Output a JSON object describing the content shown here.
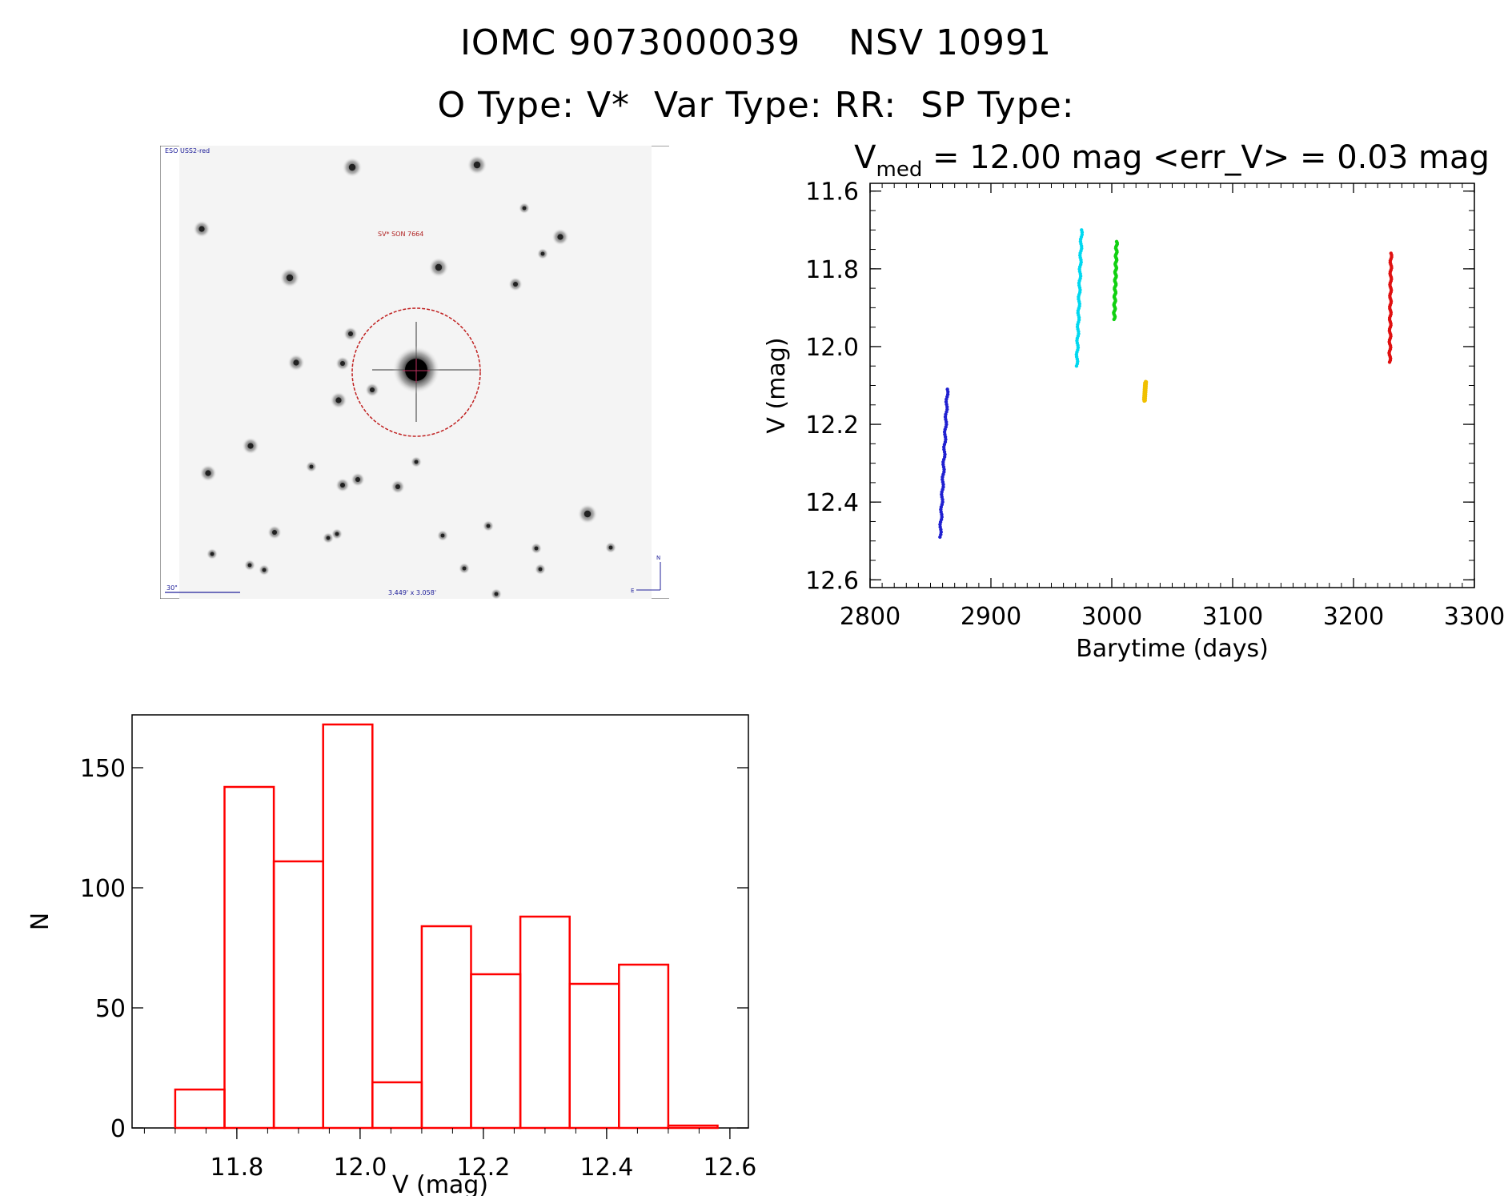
{
  "header": {
    "line1": "IOMC 9073000039    NSV 10991",
    "line2": "O Type: V*  Var Type: RR:  SP Type:"
  },
  "stamp": {
    "survey_label": "ESO USS2-red",
    "object_label": "SV* SON 7664",
    "scale_label": "30\"",
    "size_label": "3.449' x 3.058'",
    "north_label": "N",
    "east_label": "E"
  },
  "chart_data": [
    {
      "type": "scatter",
      "title_main": "V",
      "title_sub": "med",
      "title_rest": " = 12.00 mag <err_V> = 0.03 mag",
      "xlabel": "Barytime (days)",
      "ylabel": "V (mag)",
      "xlim": [
        2800,
        3300
      ],
      "ylim": [
        12.62,
        11.58
      ],
      "y_inverted": true,
      "xticks": [
        2800,
        2900,
        3000,
        3100,
        3200,
        3300
      ],
      "yticks": [
        "11.6",
        "11.8",
        "12.0",
        "12.2",
        "12.4",
        "12.6"
      ],
      "series": [
        {
          "color": "#2020d0",
          "x_range": [
            2858,
            2864
          ],
          "y_range": [
            12.11,
            12.49
          ]
        },
        {
          "color": "#00d8f0",
          "x_range": [
            2971,
            2975
          ],
          "y_range": [
            11.7,
            12.05
          ]
        },
        {
          "color": "#10d010",
          "x_range": [
            3002,
            3004
          ],
          "y_range": [
            11.73,
            11.93
          ]
        },
        {
          "color": "#f0c000",
          "x_range": [
            3027,
            3028
          ],
          "y_range": [
            12.09,
            12.14
          ]
        },
        {
          "color": "#e01010",
          "x_range": [
            3230,
            3231
          ],
          "y_range": [
            11.76,
            12.04
          ]
        }
      ]
    },
    {
      "type": "bar",
      "xlabel": "V (mag)",
      "ylabel": "N",
      "xlim": [
        11.63,
        12.63
      ],
      "ylim": [
        0,
        172
      ],
      "xticks": [
        "11.8",
        "12.0",
        "12.2",
        "12.4",
        "12.6"
      ],
      "yticks": [
        "0",
        "50",
        "100",
        "150"
      ],
      "bin_width": 0.08,
      "bin_starts": [
        11.7,
        11.78,
        11.86,
        11.94,
        12.02,
        12.1,
        12.18,
        12.26,
        12.34,
        12.42,
        12.5
      ],
      "values": [
        16,
        142,
        111,
        168,
        19,
        84,
        64,
        88,
        60,
        68,
        1
      ],
      "color": "#ff0000"
    }
  ]
}
